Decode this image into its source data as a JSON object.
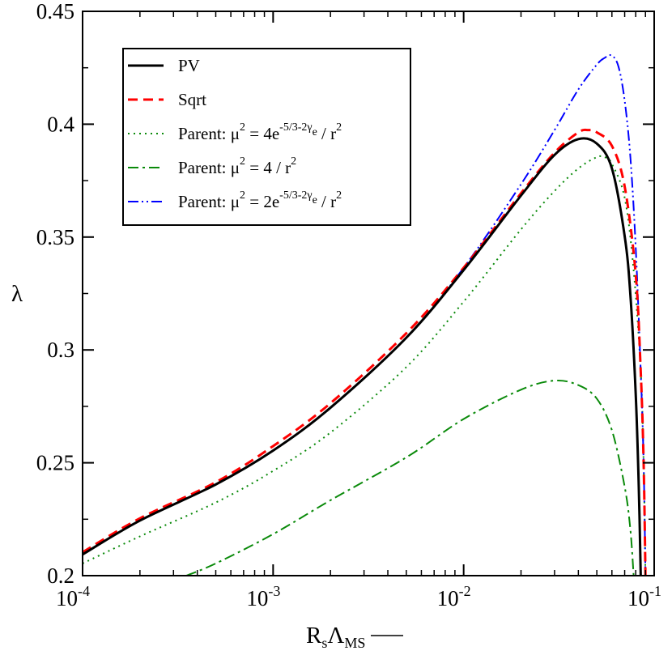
{
  "chart_data": {
    "type": "line",
    "xlabel": {
      "base": "R",
      "sub1": "s",
      "main": "Λ",
      "sub2": "MS"
    },
    "ylabel": "λ",
    "xscale": "log",
    "xlim": [
      0.0001,
      0.1
    ],
    "ylim": [
      0.2,
      0.45
    ],
    "grid": false,
    "legend_position": "top-left",
    "x_ticks": [
      {
        "value": 0.0001,
        "base": "10",
        "exp": "-4"
      },
      {
        "value": 0.001,
        "base": "10",
        "exp": "-3"
      },
      {
        "value": 0.01,
        "base": "10",
        "exp": "-2"
      },
      {
        "value": 0.1,
        "base": "10",
        "exp": "-1"
      }
    ],
    "y_ticks": [
      {
        "value": 0.2,
        "label": "0.2"
      },
      {
        "value": 0.25,
        "label": "0.25"
      },
      {
        "value": 0.3,
        "label": "0.3"
      },
      {
        "value": 0.35,
        "label": "0.35"
      },
      {
        "value": 0.4,
        "label": "0.4"
      },
      {
        "value": 0.45,
        "label": "0.45"
      }
    ],
    "series": [
      {
        "name": "PV",
        "legend": {
          "parts": [
            {
              "t": "PV"
            }
          ]
        },
        "color": "#000000",
        "dash": "",
        "width": 3,
        "points": [
          [
            0.0001,
            0.2094
          ],
          [
            0.0002,
            0.2244
          ],
          [
            0.0005,
            0.2404
          ],
          [
            0.001,
            0.2554
          ],
          [
            0.002,
            0.2744
          ],
          [
            0.005,
            0.3054
          ],
          [
            0.01,
            0.3354
          ],
          [
            0.02,
            0.3684
          ],
          [
            0.03,
            0.3864
          ],
          [
            0.04,
            0.3934
          ],
          [
            0.05,
            0.3914
          ],
          [
            0.06,
            0.3804
          ],
          [
            0.07,
            0.3504
          ],
          [
            0.075,
            0.3244
          ],
          [
            0.08,
            0.2804
          ],
          [
            0.083,
            0.2394
          ],
          [
            0.085,
            0.2
          ]
        ]
      },
      {
        "name": "Sqrt",
        "legend": {
          "parts": [
            {
              "t": "Sqrt"
            }
          ]
        },
        "color": "#ff0000",
        "dash": "12 7",
        "width": 3,
        "points": [
          [
            0.0001,
            0.2104
          ],
          [
            0.0002,
            0.2254
          ],
          [
            0.0005,
            0.2414
          ],
          [
            0.001,
            0.2574
          ],
          [
            0.002,
            0.2764
          ],
          [
            0.005,
            0.3074
          ],
          [
            0.01,
            0.3364
          ],
          [
            0.02,
            0.3694
          ],
          [
            0.03,
            0.3874
          ],
          [
            0.04,
            0.3964
          ],
          [
            0.045,
            0.3974
          ],
          [
            0.05,
            0.3964
          ],
          [
            0.06,
            0.3904
          ],
          [
            0.07,
            0.3724
          ],
          [
            0.08,
            0.3334
          ],
          [
            0.085,
            0.2904
          ],
          [
            0.088,
            0.2504
          ],
          [
            0.09,
            0.2
          ]
        ]
      },
      {
        "name": "Parent: μ^2 = 4e^{-5/3-2γ_e} / r^2",
        "legend": {
          "parts": [
            {
              "t": "Parent: μ"
            },
            {
              "t": "2",
              "sup": true
            },
            {
              "t": " = 4e"
            },
            {
              "t": "-5/3-2γ",
              "sup": true
            },
            {
              "t": "e",
              "supsub": true
            },
            {
              "t": " / r"
            },
            {
              "t": "2",
              "sup": true
            }
          ]
        },
        "color": "#0a8a0a",
        "dash": "2 5",
        "width": 2,
        "points": [
          [
            0.0001,
            0.2054
          ],
          [
            0.0002,
            0.2174
          ],
          [
            0.0005,
            0.2324
          ],
          [
            0.001,
            0.2464
          ],
          [
            0.002,
            0.2634
          ],
          [
            0.005,
            0.2924
          ],
          [
            0.01,
            0.3214
          ],
          [
            0.02,
            0.3534
          ],
          [
            0.03,
            0.3704
          ],
          [
            0.04,
            0.3804
          ],
          [
            0.05,
            0.3854
          ],
          [
            0.055,
            0.3854
          ],
          [
            0.06,
            0.3824
          ],
          [
            0.07,
            0.3674
          ],
          [
            0.078,
            0.3354
          ],
          [
            0.085,
            0.2904
          ],
          [
            0.088,
            0.2504
          ],
          [
            0.09,
            0.2
          ]
        ]
      },
      {
        "name": "Parent: μ^2 = 4 / r^2",
        "legend": {
          "parts": [
            {
              "t": "Parent: μ"
            },
            {
              "t": "2",
              "sup": true
            },
            {
              "t": " = 4 / r"
            },
            {
              "t": "2",
              "sup": true
            }
          ]
        },
        "color": "#0a8a0a",
        "dash": "13 5 3 5",
        "width": 2,
        "points": [
          [
            0.00035,
            0.2
          ],
          [
            0.0005,
            0.2054
          ],
          [
            0.001,
            0.2184
          ],
          [
            0.002,
            0.2334
          ],
          [
            0.005,
            0.2524
          ],
          [
            0.01,
            0.2694
          ],
          [
            0.02,
            0.2824
          ],
          [
            0.03,
            0.2864
          ],
          [
            0.04,
            0.2844
          ],
          [
            0.05,
            0.2784
          ],
          [
            0.06,
            0.2644
          ],
          [
            0.07,
            0.2394
          ],
          [
            0.075,
            0.2204
          ],
          [
            0.078,
            0.2
          ]
        ]
      },
      {
        "name": "Parent: μ^2 = 2e^{-5/3-2γ_e} / r^2",
        "legend": {
          "parts": [
            {
              "t": "Parent: μ"
            },
            {
              "t": "2",
              "sup": true
            },
            {
              "t": " = 2e"
            },
            {
              "t": "-5/3-2γ",
              "sup": true
            },
            {
              "t": "e",
              "supsub": true
            },
            {
              "t": " / r"
            },
            {
              "t": "2",
              "sup": true
            }
          ]
        },
        "color": "#0000ff",
        "dash": "13 4 2 4 2 4",
        "width": 2,
        "points": [
          [
            0.0001,
            0.2094
          ],
          [
            0.0002,
            0.2244
          ],
          [
            0.0005,
            0.2404
          ],
          [
            0.001,
            0.2554
          ],
          [
            0.002,
            0.2744
          ],
          [
            0.005,
            0.3054
          ],
          [
            0.01,
            0.3364
          ],
          [
            0.02,
            0.3734
          ],
          [
            0.03,
            0.3974
          ],
          [
            0.04,
            0.4154
          ],
          [
            0.05,
            0.4264
          ],
          [
            0.055,
            0.4294
          ],
          [
            0.06,
            0.4304
          ],
          [
            0.065,
            0.4254
          ],
          [
            0.07,
            0.4104
          ],
          [
            0.075,
            0.3854
          ],
          [
            0.08,
            0.3454
          ],
          [
            0.085,
            0.2904
          ],
          [
            0.088,
            0.2504
          ],
          [
            0.09,
            0.2
          ]
        ]
      }
    ]
  }
}
